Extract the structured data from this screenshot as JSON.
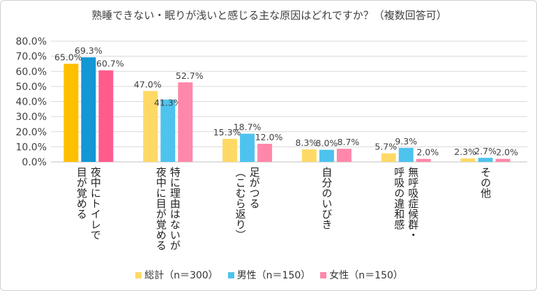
{
  "chart_data": {
    "type": "bar",
    "title": "熟睡できない・眠りが浅いと感じる主な原因はどれですか？（複数回答可）",
    "categories": [
      "夜中にトイレで\n目が覚める",
      "特に理由はないが\n夜中に目が覚める",
      "足がつる\n（こむら返り）",
      "自分のいびき",
      "無呼吸症候群・\n呼吸の違和感",
      "その他"
    ],
    "series": [
      {
        "name": "総計（n＝300）",
        "values": [
          65.0,
          47.0,
          15.3,
          8.3,
          5.7,
          2.3
        ],
        "color": "#FFD966",
        "highlight": "#FFC000"
      },
      {
        "name": "男性（n＝150）",
        "values": [
          69.3,
          41.3,
          18.7,
          8.0,
          9.3,
          2.7
        ],
        "color": "#4DC3EE",
        "highlight": "#1397D5"
      },
      {
        "name": "女性（n＝150）",
        "values": [
          60.7,
          52.7,
          12.0,
          8.7,
          2.0,
          2.0
        ],
        "color": "#FF88AA",
        "highlight": "#FF5C8D"
      }
    ],
    "y_ticks": [
      "0.0%",
      "10.0%",
      "20.0%",
      "30.0%",
      "40.0%",
      "50.0%",
      "60.0%",
      "70.0%",
      "80.0%"
    ],
    "ylim": [
      0,
      80
    ],
    "grid": true,
    "legend": "bottom",
    "xlabel": "",
    "ylabel": ""
  }
}
